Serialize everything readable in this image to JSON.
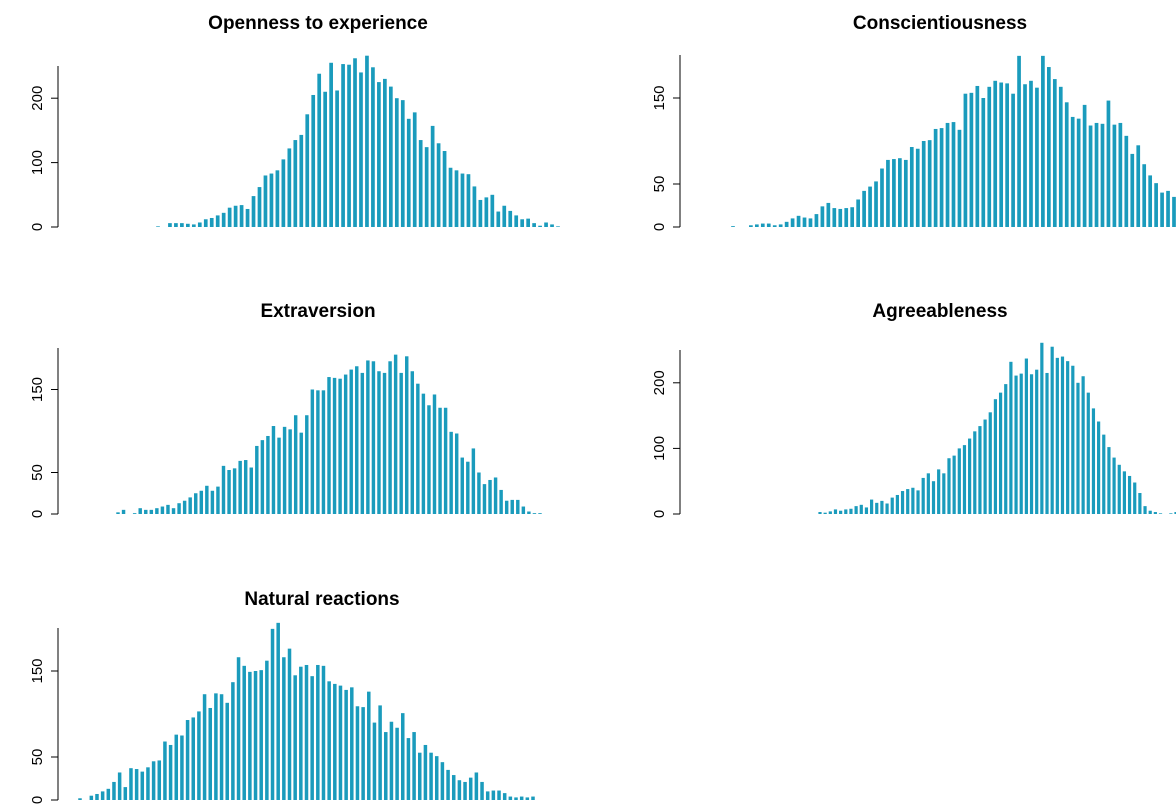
{
  "chart_data": [
    {
      "type": "bar",
      "title": "Openness to experience",
      "color": "#1a9bbc",
      "ylim": [
        0,
        250
      ],
      "yticks": [
        0,
        100,
        200
      ],
      "values": [
        1,
        0,
        6,
        6,
        6,
        5,
        4,
        7,
        12,
        14,
        18,
        22,
        30,
        33,
        34,
        28,
        48,
        62,
        80,
        83,
        88,
        105,
        122,
        135,
        143,
        175,
        205,
        238,
        210,
        255,
        212,
        253,
        252,
        262,
        240,
        266,
        248,
        225,
        230,
        218,
        200,
        197,
        168,
        178,
        135,
        124,
        157,
        130,
        118,
        92,
        88,
        83,
        82,
        63,
        42,
        46,
        50,
        24,
        33,
        25,
        18,
        12,
        13,
        6,
        2,
        7,
        4,
        1
      ]
    },
    {
      "type": "bar",
      "title": "Conscientiousness",
      "color": "#1a9bbc",
      "ylim": [
        0,
        200
      ],
      "yticks": [
        0,
        50,
        150
      ],
      "values": [
        1,
        0,
        0,
        2,
        3,
        4,
        4,
        2,
        3,
        6,
        10,
        13,
        11,
        10,
        15,
        24,
        28,
        22,
        21,
        22,
        23,
        32,
        42,
        47,
        53,
        68,
        78,
        79,
        80,
        78,
        93,
        91,
        100,
        101,
        114,
        115,
        121,
        122,
        113,
        155,
        156,
        164,
        150,
        163,
        170,
        168,
        167,
        155,
        199,
        166,
        170,
        162,
        199,
        186,
        172,
        163,
        145,
        128,
        126,
        142,
        118,
        121,
        120,
        147,
        119,
        121,
        106,
        85,
        95,
        73,
        60,
        51,
        40,
        42,
        35
      ]
    },
    {
      "type": "bar",
      "title": "Extraversion",
      "color": "#1a9bbc",
      "ylim": [
        0,
        200
      ],
      "yticks": [
        0,
        50,
        150
      ],
      "values": [
        2,
        5,
        0,
        1,
        7,
        5,
        5,
        7,
        9,
        11,
        7,
        13,
        16,
        20,
        25,
        28,
        34,
        28,
        33,
        58,
        53,
        55,
        64,
        65,
        56,
        82,
        89,
        94,
        106,
        92,
        105,
        102,
        119,
        98,
        119,
        150,
        149,
        149,
        165,
        164,
        163,
        168,
        174,
        178,
        170,
        185,
        184,
        172,
        170,
        184,
        192,
        170,
        190,
        172,
        157,
        145,
        131,
        144,
        128,
        128,
        99,
        97,
        68,
        63,
        79,
        50,
        36,
        41,
        44,
        29,
        16,
        17,
        17,
        9,
        3,
        1,
        1
      ]
    },
    {
      "type": "bar",
      "title": "Agreeableness",
      "color": "#1a9bbc",
      "ylim": [
        0,
        250
      ],
      "yticks": [
        0,
        100,
        200
      ],
      "values": [
        3,
        2,
        4,
        7,
        5,
        7,
        8,
        12,
        14,
        10,
        22,
        17,
        20,
        16,
        25,
        29,
        35,
        38,
        40,
        36,
        55,
        62,
        50,
        68,
        62,
        85,
        89,
        100,
        105,
        115,
        126,
        134,
        144,
        155,
        175,
        185,
        198,
        232,
        211,
        214,
        237,
        213,
        220,
        261,
        215,
        255,
        238,
        240,
        233,
        226,
        200,
        210,
        185,
        161,
        141,
        121,
        102,
        86,
        75,
        65,
        58,
        48,
        32,
        12,
        5,
        3,
        1,
        0,
        1,
        3
      ]
    },
    {
      "type": "bar",
      "title": "Natural reactions",
      "color": "#1a9bbc",
      "ylim": [
        0,
        200
      ],
      "yticks": [
        0,
        50,
        150
      ],
      "values": [
        2,
        0,
        5,
        7,
        10,
        13,
        21,
        32,
        15,
        37,
        36,
        33,
        38,
        45,
        46,
        68,
        64,
        76,
        75,
        93,
        96,
        103,
        123,
        107,
        124,
        123,
        113,
        137,
        166,
        156,
        149,
        150,
        151,
        162,
        199,
        206,
        166,
        176,
        145,
        155,
        157,
        144,
        157,
        156,
        138,
        135,
        133,
        128,
        131,
        109,
        108,
        126,
        90,
        110,
        79,
        91,
        84,
        101,
        72,
        79,
        55,
        64,
        55,
        51,
        44,
        35,
        29,
        23,
        21,
        26,
        32,
        21,
        10,
        11,
        11,
        8,
        4,
        3,
        4,
        3,
        4
      ]
    }
  ]
}
